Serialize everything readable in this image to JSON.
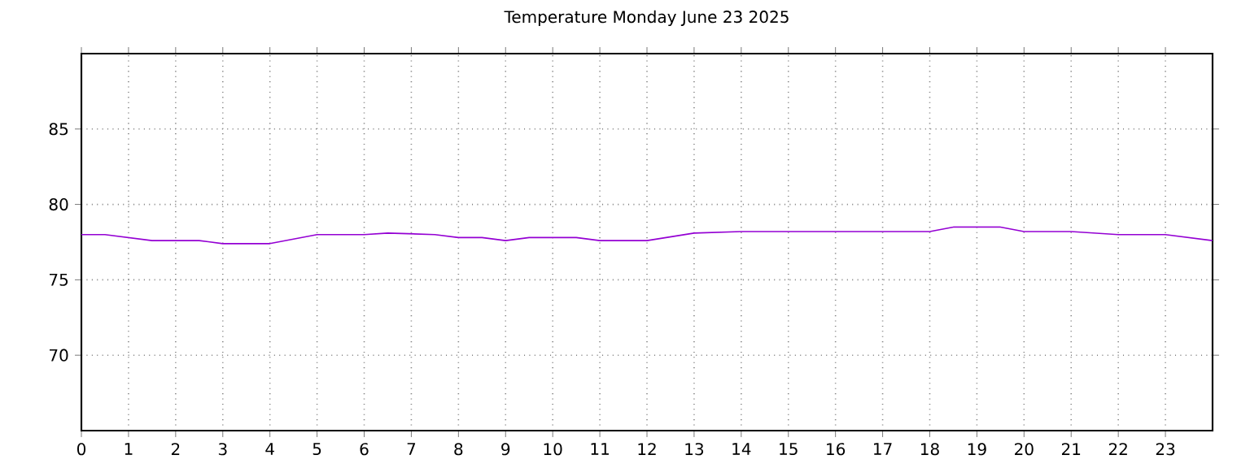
{
  "chart_data": {
    "type": "line",
    "title": "Temperature Monday June 23 2025",
    "x": [
      0,
      0.5,
      1.5,
      2.5,
      3,
      4,
      5,
      6,
      6.5,
      7.5,
      8,
      8.5,
      9,
      9.5,
      10.5,
      11,
      12,
      13,
      14,
      18,
      18.5,
      19.5,
      20,
      21,
      22,
      23,
      24
    ],
    "values": [
      78.0,
      78.0,
      77.6,
      77.6,
      77.4,
      77.4,
      78.0,
      78.0,
      78.1,
      78.0,
      77.8,
      77.8,
      77.6,
      77.8,
      77.8,
      77.6,
      77.6,
      78.1,
      78.2,
      78.2,
      78.5,
      78.5,
      78.2,
      78.2,
      78.0,
      78.0,
      77.6
    ],
    "color": "#9400d3",
    "xlim": [
      0,
      24
    ],
    "ylim": [
      65,
      90
    ],
    "xticks": [
      0,
      1,
      2,
      3,
      4,
      5,
      6,
      7,
      8,
      9,
      10,
      11,
      12,
      13,
      14,
      15,
      16,
      17,
      18,
      19,
      20,
      21,
      22,
      23
    ],
    "yticks": [
      70,
      75,
      80,
      85
    ],
    "grid": true,
    "marker": "none",
    "line_style": "solid"
  }
}
